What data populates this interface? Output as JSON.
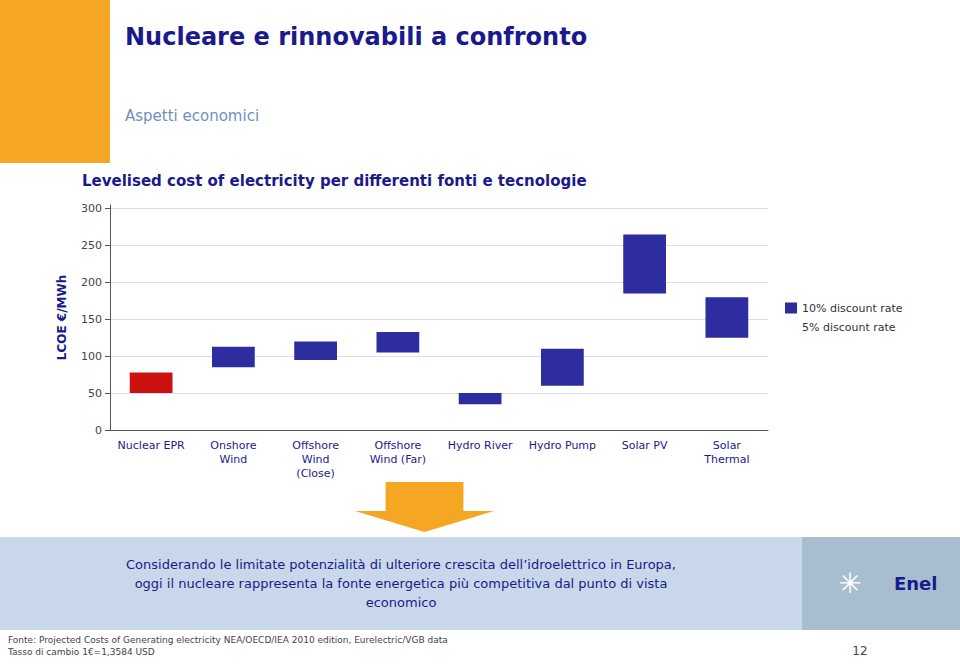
{
  "title": "Nucleare e rinnovabili a confronto",
  "subtitle": "Aspetti economici",
  "annotations": [
    "Considerando le limitate potenzialità di ulteriore crescita dell’idroelettrico in Europa,\noggi il nucleare rappresenta la fonte energetica più competitiva dal punto di vista\neconomico",
    "Fonte: Projected Costs of Generating electricity NEA/OECD/IEA 2010 edition, Eurelectric/VGB data\nTasso di cambio 1€=1,3584 USD",
    "12",
    "Enel",
    "✳"
  ],
  "chart_data": {
    "type": "bar",
    "title": "Levelised cost of electricity per differenti fonti e tecnologie",
    "ylabel": "LCOE €/MWh",
    "categories": [
      "Nuclear EPR",
      "Onshore\nWind",
      "Offshore\nWind\n(Close)",
      "Offshore\nWind (Far)",
      "Hydro River",
      "Hydro Pump",
      "Solar PV",
      "Solar\nThermal"
    ],
    "low": [
      50,
      85,
      95,
      105,
      35,
      60,
      185,
      125
    ],
    "high": [
      78,
      113,
      120,
      133,
      50,
      110,
      265,
      180
    ],
    "colors": [
      "#cc1111",
      "#2d2d9f",
      "#2d2d9f",
      "#2d2d9f",
      "#2d2d9f",
      "#2d2d9f",
      "#2d2d9f",
      "#2d2d9f"
    ],
    "ylim": [
      0,
      305
    ],
    "yticks": [
      0,
      50,
      100,
      150,
      200,
      250,
      300
    ],
    "grid": true,
    "legend": "right",
    "series": [
      {
        "name": "10% discount rate",
        "color": "#2d2d9f"
      },
      {
        "name": "5% discount rate",
        "color": "#ffffff"
      }
    ]
  }
}
